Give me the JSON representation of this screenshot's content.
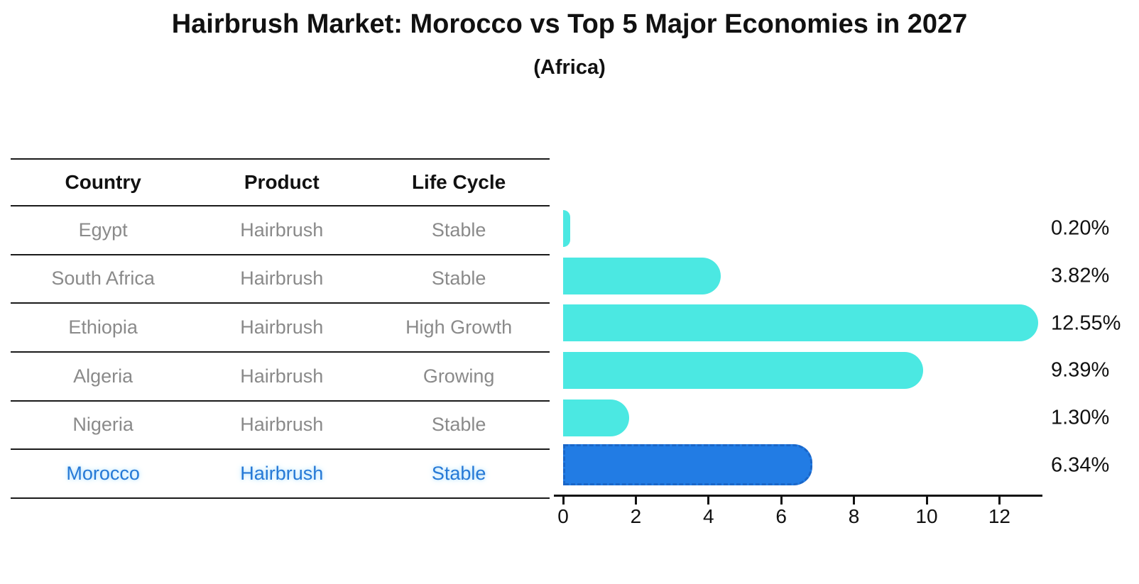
{
  "title": "Hairbrush Market: Morocco vs Top 5 Major Economies in 2027",
  "subtitle": "(Africa)",
  "table": {
    "headers": [
      "Country",
      "Product",
      "Life Cycle"
    ],
    "rows": [
      {
        "country": "Egypt",
        "product": "Hairbrush",
        "life_cycle": "Stable",
        "highlight": false
      },
      {
        "country": "South Africa",
        "product": "Hairbrush",
        "life_cycle": "Stable",
        "highlight": false
      },
      {
        "country": "Ethiopia",
        "product": "Hairbrush",
        "life_cycle": "High Growth",
        "highlight": false
      },
      {
        "country": "Algeria",
        "product": "Hairbrush",
        "life_cycle": "Growing",
        "highlight": false
      },
      {
        "country": "Nigeria",
        "product": "Hairbrush",
        "life_cycle": "Stable",
        "highlight": true
      }
    ]
  },
  "chart_data": {
    "type": "bar",
    "orientation": "horizontal",
    "title": "Hairbrush Market: Morocco vs Top 5 Major Economies in 2027",
    "subtitle": "(Africa)",
    "categories": [
      "Egypt",
      "South Africa",
      "Ethiopia",
      "Algeria",
      "Nigeria",
      "Morocco"
    ],
    "values": [
      0.2,
      3.82,
      12.55,
      9.39,
      1.3,
      6.34
    ],
    "value_labels": [
      "0.20%",
      "3.82%",
      "12.55%",
      "9.39%",
      "1.30%",
      "6.34%"
    ],
    "highlight_index": 5,
    "x_ticks": [
      0,
      2,
      4,
      6,
      8,
      10,
      12
    ],
    "xlim": [
      0,
      13.2
    ],
    "xlabel": "",
    "ylabel": "",
    "grid": false,
    "legend": false
  },
  "colors": {
    "bar": "#4BE8E2",
    "highlight_bar": "#227CE4",
    "highlight_bar_border": "#1A66C8",
    "highlight_text": "#2679D6",
    "highlight_glow": "#BFE6FF",
    "row_text": "#8A8A8A",
    "ink": "#111111",
    "line": "#1A1A1A",
    "background": "#FFFFFF"
  }
}
